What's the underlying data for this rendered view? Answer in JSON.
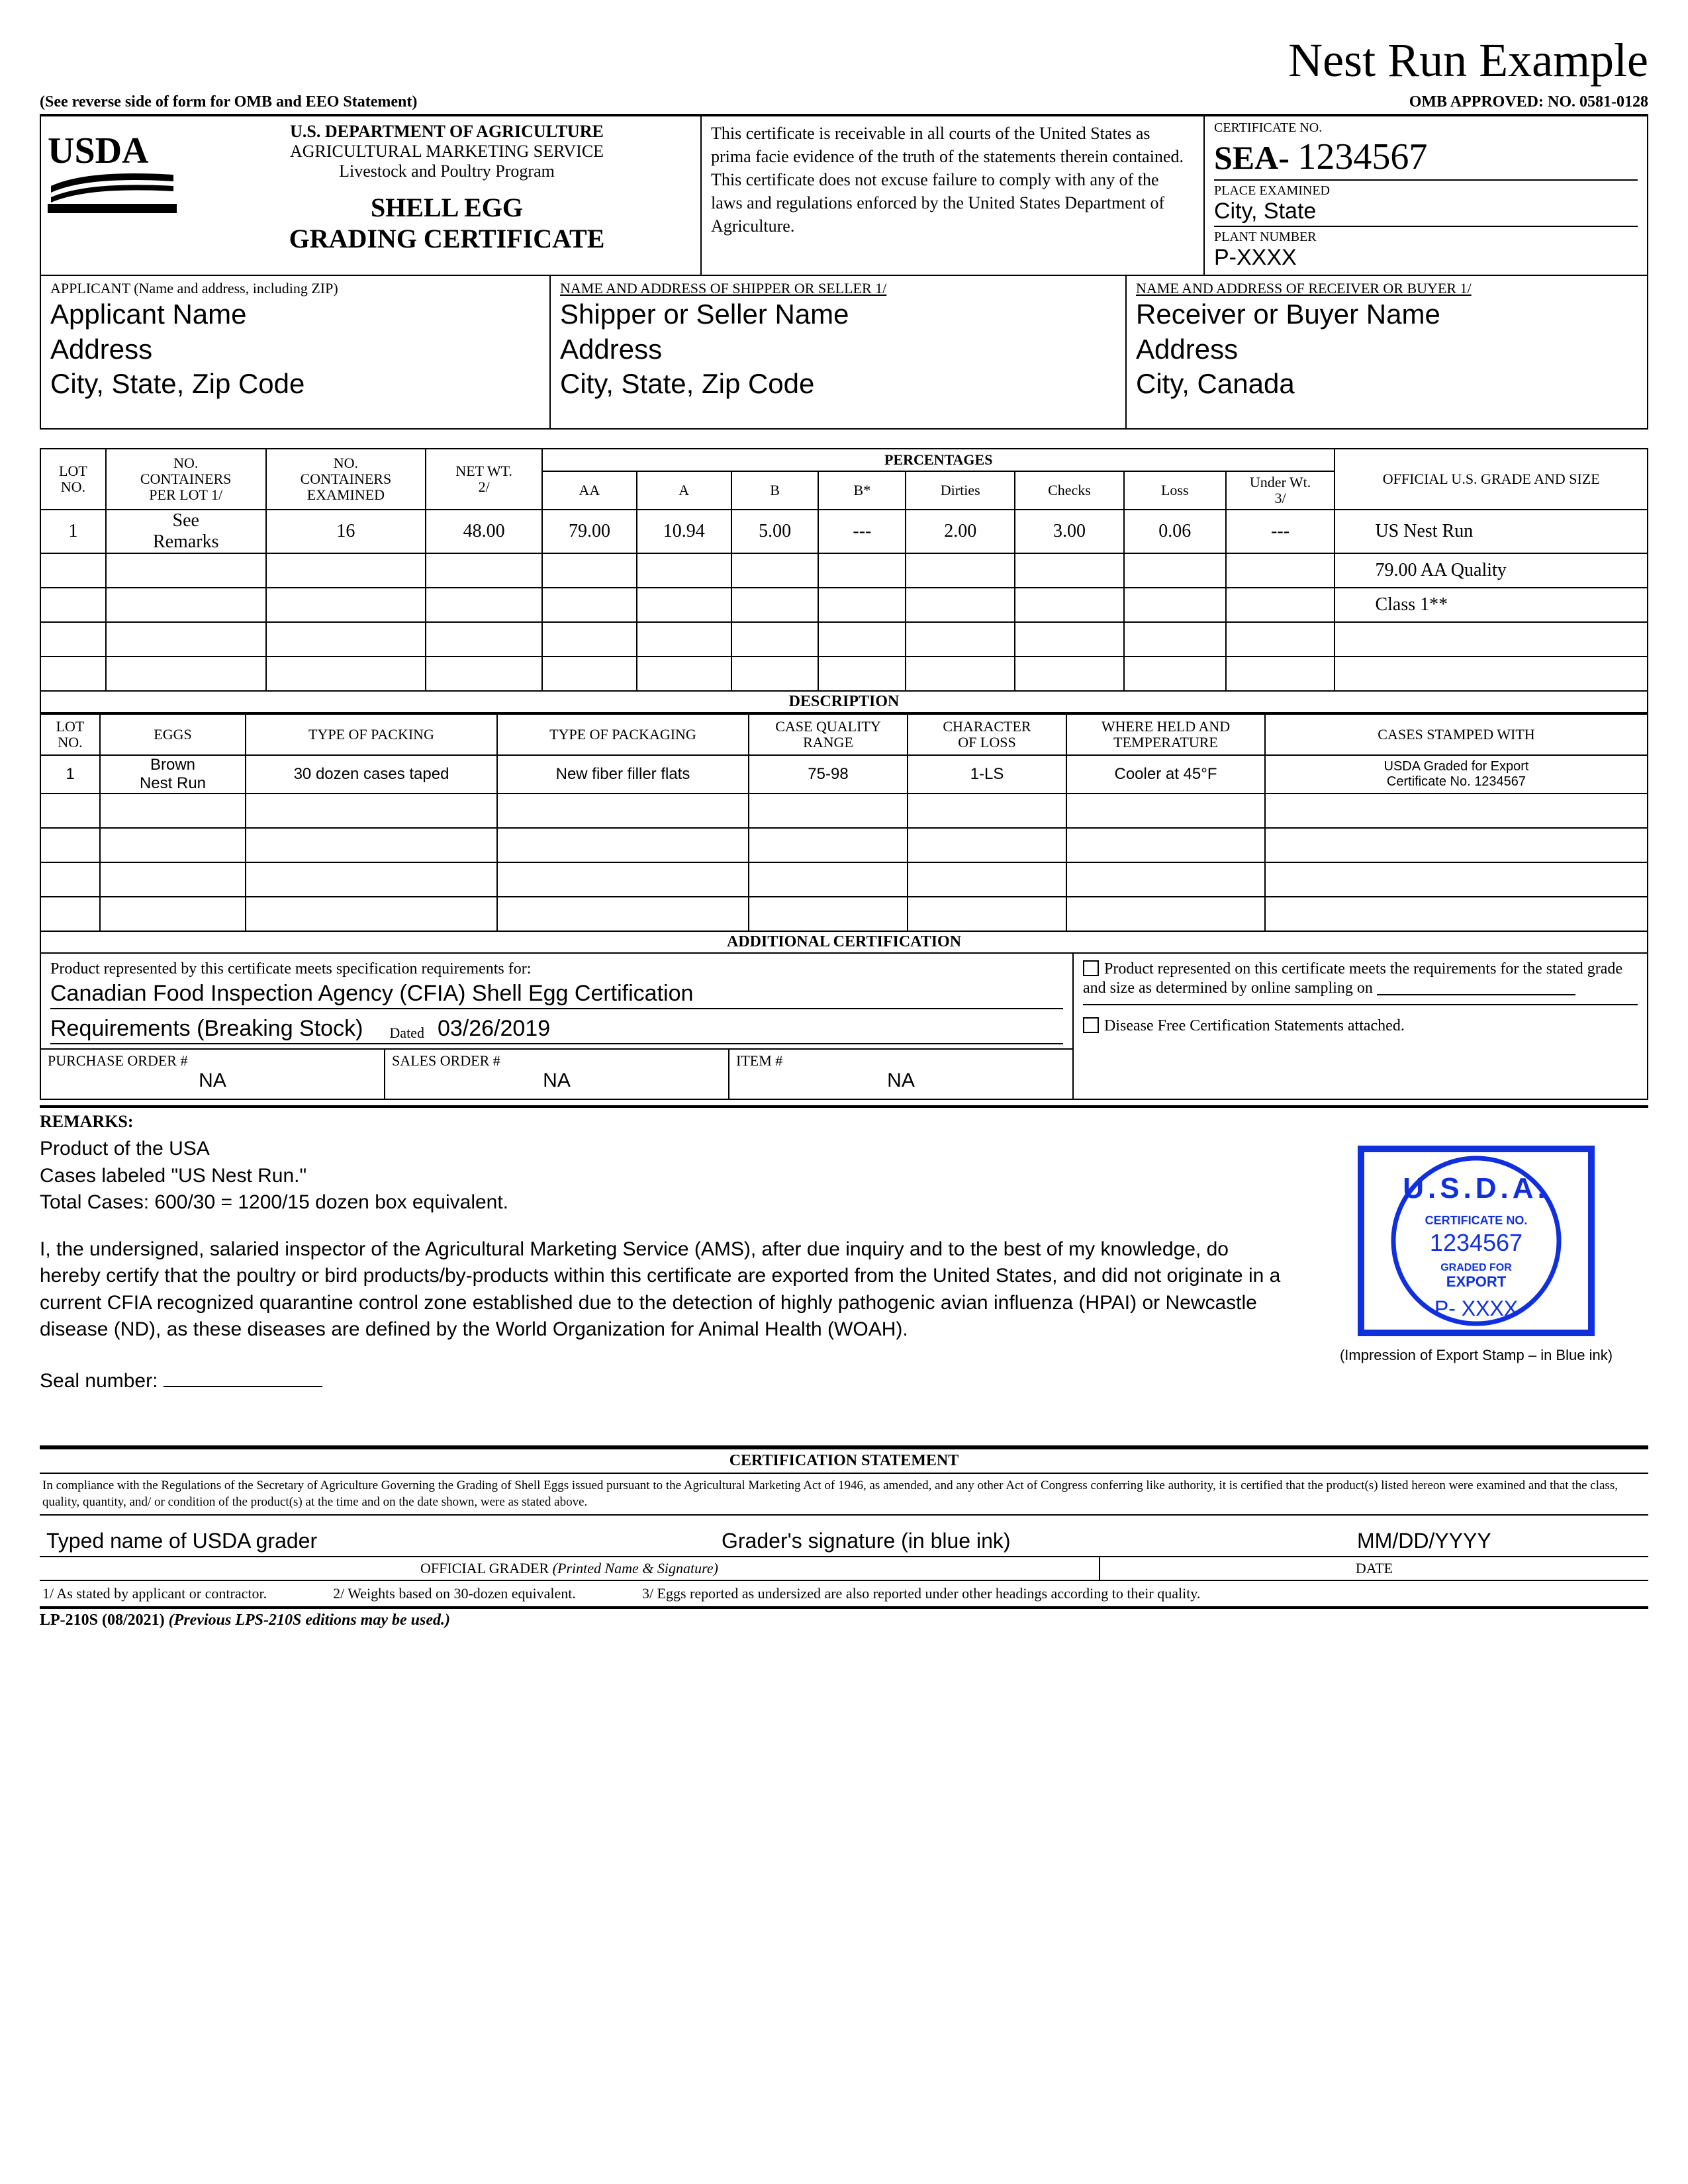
{
  "top_title": "Nest Run Example",
  "omb_left": "(See reverse side of form for OMB and EEO Statement)",
  "omb_right": "OMB APPROVED: NO. 0581-0128",
  "header": {
    "dept1": "U.S. DEPARTMENT OF AGRICULTURE",
    "dept2": "AGRICULTURAL MARKETING SERVICE",
    "dept3": "Livestock and Poultry Program",
    "title1": "SHELL EGG",
    "title2": "GRADING CERTIFICATE",
    "statement": "This certificate is receivable in all courts of the United States as prima facie evidence of the truth of the statements therein contained.  This certificate does not excuse failure to comply with any of the laws and regulations enforced by the United States Department of Agriculture.",
    "cert_no_lbl": "CERTIFICATE NO.",
    "cert_prefix": "SEA-",
    "cert_num": "1234567",
    "place_lbl": "PLACE EXAMINED",
    "place_val": "City, State",
    "plant_lbl": "PLANT NUMBER",
    "plant_val": "P-XXXX"
  },
  "addresses": {
    "applicant_lbl": "APPLICANT (Name and address, including ZIP)",
    "applicant": "Applicant Name\nAddress\nCity, State, Zip Code",
    "shipper_lbl": "NAME AND ADDRESS OF SHIPPER OR SELLER 1/",
    "shipper": "Shipper or Seller Name\nAddress\nCity, State, Zip Code",
    "receiver_lbl": "NAME AND ADDRESS OF RECEIVER OR BUYER 1/",
    "receiver": "Receiver or Buyer Name\nAddress\nCity, Canada"
  },
  "pct_table": {
    "headers": {
      "lot": "LOT\nNO.",
      "c_per_lot": "NO.\nCONTAINERS\nPER LOT 1/",
      "c_exam": "NO.\nCONTAINERS\nEXAMINED",
      "netwt": "NET WT.\n2/",
      "pct": "PERCENTAGES",
      "aa": "AA",
      "a": "A",
      "b": "B",
      "bs": "B*",
      "dirties": "Dirties",
      "checks": "Checks",
      "loss": "Loss",
      "uwt": "Under Wt.\n3/",
      "grade": "OFFICIAL U.S. GRADE AND SIZE"
    },
    "rows": [
      {
        "lot": "1",
        "cpl": "See\nRemarks",
        "cex": "16",
        "nw": "48.00",
        "aa": "79.00",
        "a": "10.94",
        "b": "5.00",
        "bs": "---",
        "d": "2.00",
        "ck": "3.00",
        "ls": "0.06",
        "uw": "---",
        "grade": "US Nest Run"
      },
      {
        "grade": "79.00 AA Quality"
      },
      {
        "grade": "Class 1**"
      },
      {},
      {}
    ]
  },
  "desc_table": {
    "title": "DESCRIPTION",
    "headers": {
      "lot": "LOT\nNO.",
      "eggs": "EGGS",
      "packing": "TYPE OF PACKING",
      "packaging": "TYPE OF PACKAGING",
      "cqr": "CASE QUALITY\nRANGE",
      "col": "CHARACTER\nOF LOSS",
      "temp": "WHERE HELD AND\nTEMPERATURE",
      "stamped": "CASES STAMPED WITH"
    },
    "rows": [
      {
        "lot": "1",
        "eggs": "Brown\nNest Run",
        "packing": "30 dozen cases taped",
        "packaging": "New fiber filler flats",
        "cqr": "75-98",
        "col": "1-LS",
        "temp": "Cooler at 45°F",
        "stamped": "USDA Graded for Export\nCertificate No. 1234567"
      },
      {},
      {},
      {},
      {}
    ]
  },
  "addl": {
    "title": "ADDITIONAL CERTIFICATION",
    "left_lbl": "Product represented by this certificate meets specification requirements for:",
    "line1": "Canadian Food Inspection Agency (CFIA) Shell Egg Certification",
    "line2a": "Requirements (Breaking Stock)",
    "dated_lbl": "Dated",
    "dated_val": "03/26/2019",
    "po_lbl": "PURCHASE ORDER #",
    "po_val": "NA",
    "so_lbl": "SALES ORDER #",
    "so_val": "NA",
    "item_lbl": "ITEM #",
    "item_val": "NA",
    "right1": "Product represented on this certificate meets the requirements for the stated grade and size as determined by online sampling on",
    "right2": "Disease Free Certification Statements attached."
  },
  "remarks": {
    "lbl": "REMARKS:",
    "p1": "Product of the USA\nCases labeled \"US Nest Run.\"\nTotal Cases: 600/30 = 1200/15 dozen box equivalent.",
    "p2": "I, the undersigned, salaried inspector of the Agricultural Marketing Service (AMS), after due inquiry and to the best of my knowledge, do hereby certify that the poultry or bird products/by-products within this certificate are exported from the United States, and did not originate in a current CFIA recognized quarantine control zone established due to the detection of highly pathogenic avian influenza (HPAI) or Newcastle disease (ND), as these diseases are defined by the World Organization for Animal Health (WOAH).",
    "seal_lbl": "Seal number:",
    "stamp_caption": "(Impression of Export Stamp – in Blue ink)",
    "stamp": {
      "usda": "U.S.D.A.",
      "cert_lbl": "CERTIFICATE NO.",
      "cert_num": "1234567",
      "graded": "GRADED FOR",
      "export": "EXPORT",
      "plant": "P- XXXX"
    }
  },
  "cert": {
    "title": "CERTIFICATION STATEMENT",
    "fine": "In compliance with the Regulations of the Secretary of Agriculture Governing the Grading of Shell Eggs issued pursuant to the Agricultural Marketing Act of 1946, as amended, and any other Act of Congress conferring like authority, it is certified that the product(s) listed hereon were examined and that the class, quality, quantity, and/ or condition of the product(s) at the time and on the date shown, were as stated above.",
    "sig1": "Typed name of USDA grader",
    "sig2": "Grader's signature (in blue ink)",
    "sig3": "MM/DD/YYYY",
    "lbl1": "OFFICIAL GRADER (Printed Name & Signature)",
    "lbl2": "DATE"
  },
  "footnotes": {
    "f1": "1/ As stated by applicant or contractor.",
    "f2": "2/ Weights based on 30-dozen equivalent.",
    "f3": "3/ Eggs reported as undersized are also reported under other headings according to their quality."
  },
  "form": {
    "no": "LP-210S (08/2021)",
    "prev": "(Previous LPS-210S editions may be used.)"
  }
}
